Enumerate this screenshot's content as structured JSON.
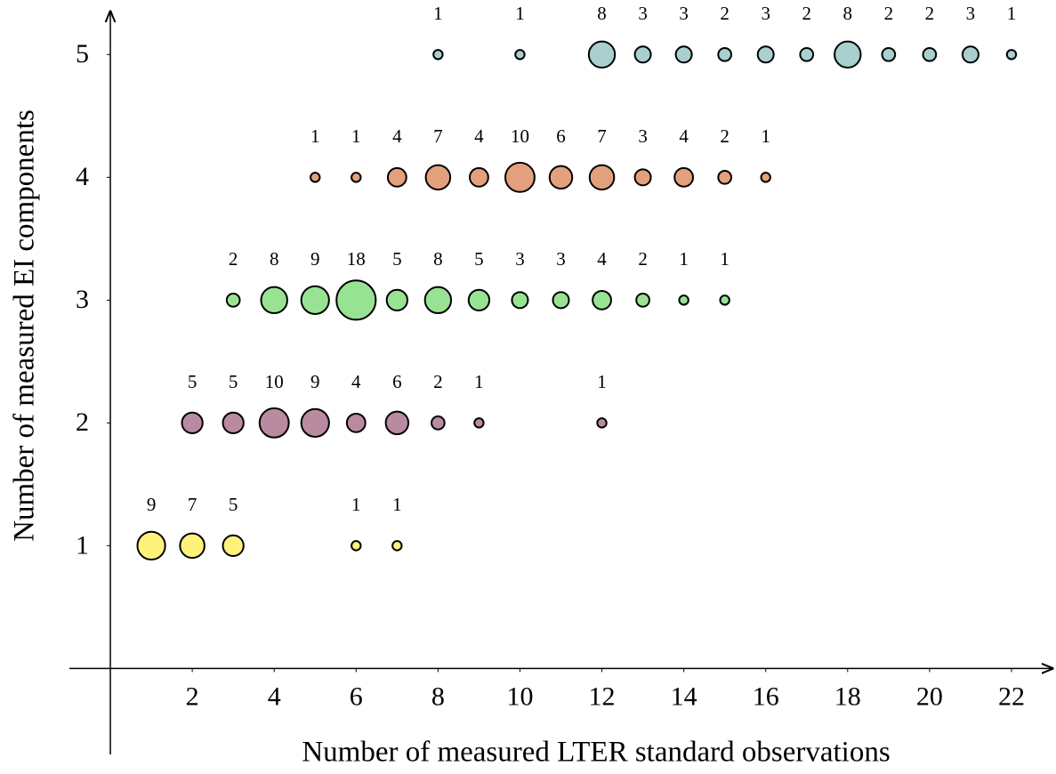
{
  "chart_data": {
    "type": "bubble",
    "x_label": "Number of measured LTER standard observations",
    "y_label": "Number of measured EI components",
    "xlim": [
      -1,
      23
    ],
    "ylim": [
      -0.7,
      5.35
    ],
    "xticks": [
      2,
      4,
      6,
      8,
      10,
      12,
      14,
      16,
      18,
      20,
      22
    ],
    "yticks": [
      1,
      2,
      3,
      4,
      5
    ],
    "series": [
      {
        "color": "#a9cfd0",
        "x": [
          8,
          10,
          12,
          13,
          14,
          15,
          16,
          17,
          18,
          19,
          20,
          21,
          22
        ],
        "values": [
          5,
          5,
          5,
          5,
          5,
          5,
          5,
          5,
          5,
          5,
          5,
          5,
          5
        ],
        "sizes": [
          1,
          1,
          8,
          3,
          3,
          2,
          3,
          2,
          8,
          2,
          2,
          3,
          1
        ]
      },
      {
        "color": "#e3a07c",
        "x": [
          5,
          6,
          7,
          8,
          9,
          10,
          11,
          12,
          13,
          14,
          15,
          16
        ],
        "values": [
          4,
          4,
          4,
          4,
          4,
          4,
          4,
          4,
          4,
          4,
          4,
          4
        ],
        "sizes": [
          1,
          1,
          4,
          7,
          4,
          10,
          6,
          7,
          3,
          4,
          2,
          1
        ]
      },
      {
        "color": "#98e393",
        "x": [
          3,
          4,
          5,
          6,
          7,
          8,
          9,
          10,
          11,
          12,
          13,
          14,
          15
        ],
        "values": [
          3,
          3,
          3,
          3,
          3,
          3,
          3,
          3,
          3,
          3,
          3,
          3,
          3
        ],
        "sizes": [
          2,
          8,
          9,
          18,
          5,
          8,
          5,
          3,
          3,
          4,
          2,
          1,
          1
        ]
      },
      {
        "color": "#b98aa0",
        "x": [
          2,
          3,
          4,
          5,
          6,
          7,
          8,
          9,
          12
        ],
        "values": [
          2,
          2,
          2,
          2,
          2,
          2,
          2,
          2,
          2
        ],
        "sizes": [
          5,
          5,
          10,
          9,
          4,
          6,
          2,
          1,
          1
        ]
      },
      {
        "color": "#fff27a",
        "x": [
          1,
          2,
          3,
          6,
          7
        ],
        "values": [
          1,
          1,
          1,
          1,
          1
        ],
        "sizes": [
          9,
          7,
          5,
          1,
          1
        ]
      }
    ]
  }
}
